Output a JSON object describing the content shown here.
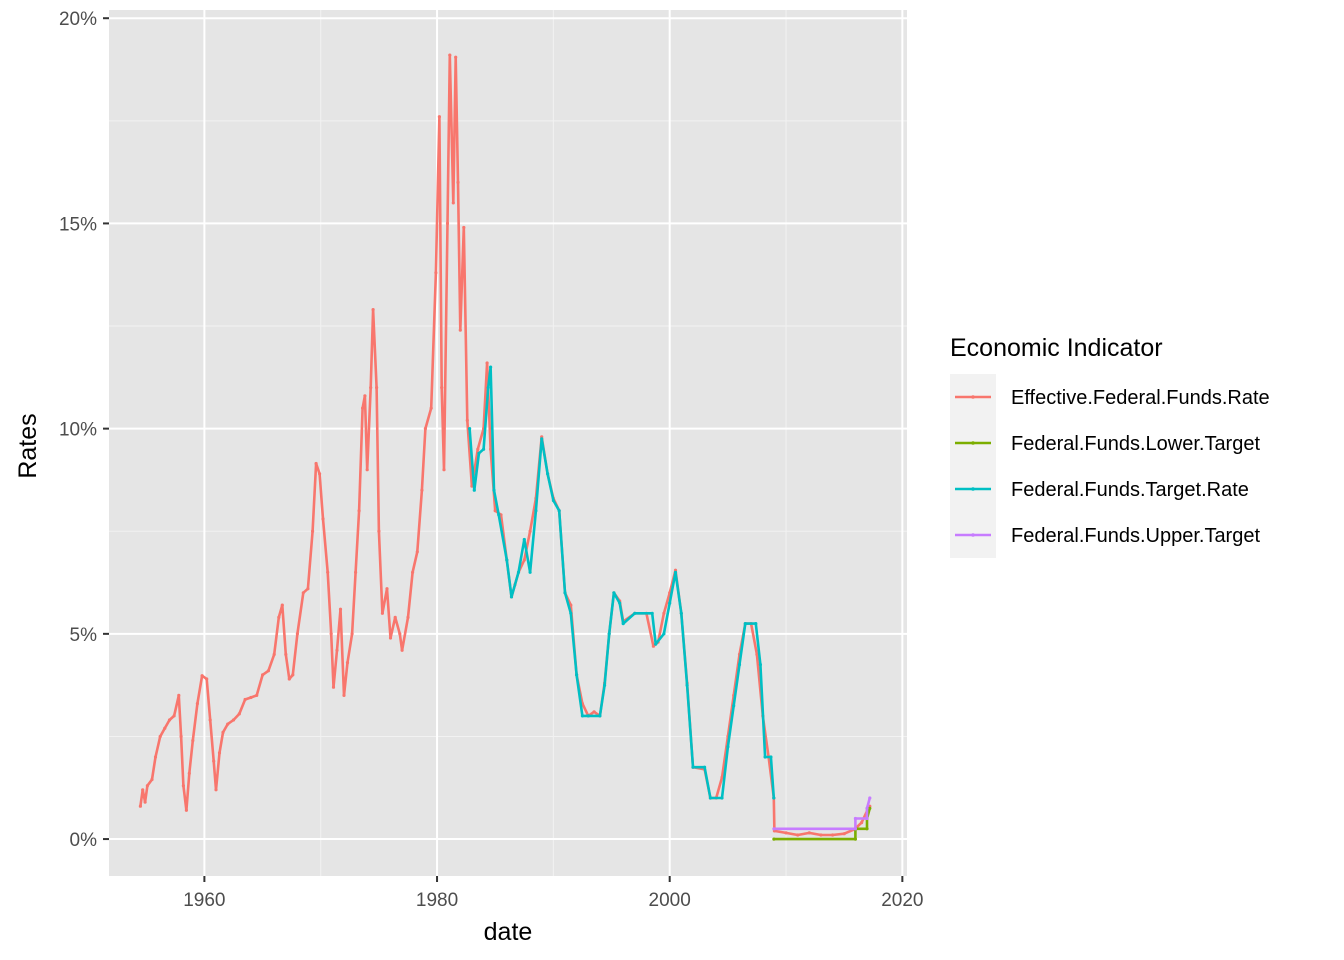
{
  "chart_data": {
    "type": "line",
    "xlabel": "date",
    "ylabel": "Rates",
    "xlim": [
      1951.8,
      2020.4
    ],
    "ylim": [
      -0.9,
      20.2
    ],
    "grid": true,
    "legend_position": "right",
    "legend_title": "Economic Indicator",
    "x_ticks": [
      {
        "value": 1960,
        "label": "1960"
      },
      {
        "value": 1980,
        "label": "1980"
      },
      {
        "value": 2000,
        "label": "2000"
      },
      {
        "value": 2020,
        "label": "2020"
      }
    ],
    "y_ticks": [
      {
        "value": 0,
        "label": "0%"
      },
      {
        "value": 5,
        "label": "5%"
      },
      {
        "value": 10,
        "label": "10%"
      },
      {
        "value": 15,
        "label": "15%"
      },
      {
        "value": 20,
        "label": "20%"
      }
    ],
    "series": [
      {
        "name": "Effective.Federal.Funds.Rate",
        "color": "#F8766D",
        "points": [
          [
            1954.5,
            0.8
          ],
          [
            1954.7,
            1.2
          ],
          [
            1954.9,
            0.9
          ],
          [
            1955.1,
            1.3
          ],
          [
            1955.5,
            1.45
          ],
          [
            1955.8,
            2.0
          ],
          [
            1956.2,
            2.5
          ],
          [
            1956.6,
            2.7
          ],
          [
            1957.0,
            2.9
          ],
          [
            1957.4,
            3.0
          ],
          [
            1957.8,
            3.5
          ],
          [
            1958.0,
            2.5
          ],
          [
            1958.2,
            1.3
          ],
          [
            1958.45,
            0.7
          ],
          [
            1958.7,
            1.6
          ],
          [
            1959.0,
            2.4
          ],
          [
            1959.4,
            3.3
          ],
          [
            1959.8,
            3.98
          ],
          [
            1960.2,
            3.9
          ],
          [
            1960.5,
            2.9
          ],
          [
            1960.8,
            1.9
          ],
          [
            1961.0,
            1.2
          ],
          [
            1961.3,
            2.1
          ],
          [
            1961.6,
            2.6
          ],
          [
            1962.0,
            2.8
          ],
          [
            1962.5,
            2.9
          ],
          [
            1963.0,
            3.05
          ],
          [
            1963.5,
            3.4
          ],
          [
            1964.0,
            3.45
          ],
          [
            1964.5,
            3.5
          ],
          [
            1965.0,
            4.0
          ],
          [
            1965.5,
            4.1
          ],
          [
            1966.0,
            4.5
          ],
          [
            1966.4,
            5.4
          ],
          [
            1966.7,
            5.7
          ],
          [
            1967.0,
            4.5
          ],
          [
            1967.3,
            3.9
          ],
          [
            1967.6,
            4.0
          ],
          [
            1968.0,
            5.0
          ],
          [
            1968.5,
            6.0
          ],
          [
            1968.9,
            6.1
          ],
          [
            1969.3,
            7.5
          ],
          [
            1969.6,
            9.15
          ],
          [
            1969.9,
            8.9
          ],
          [
            1970.2,
            7.8
          ],
          [
            1970.6,
            6.5
          ],
          [
            1970.9,
            5.0
          ],
          [
            1971.1,
            3.7
          ],
          [
            1971.4,
            4.6
          ],
          [
            1971.7,
            5.6
          ],
          [
            1972.0,
            3.5
          ],
          [
            1972.3,
            4.3
          ],
          [
            1972.7,
            5.0
          ],
          [
            1973.0,
            6.5
          ],
          [
            1973.3,
            8.0
          ],
          [
            1973.6,
            10.5
          ],
          [
            1973.8,
            10.8
          ],
          [
            1974.0,
            9.0
          ],
          [
            1974.3,
            11.0
          ],
          [
            1974.5,
            12.9
          ],
          [
            1974.8,
            11.0
          ],
          [
            1975.0,
            7.5
          ],
          [
            1975.3,
            5.5
          ],
          [
            1975.7,
            6.1
          ],
          [
            1976.0,
            4.9
          ],
          [
            1976.4,
            5.4
          ],
          [
            1976.8,
            5.0
          ],
          [
            1977.0,
            4.6
          ],
          [
            1977.5,
            5.4
          ],
          [
            1977.9,
            6.5
          ],
          [
            1978.3,
            7.0
          ],
          [
            1978.7,
            8.5
          ],
          [
            1979.0,
            10.0
          ],
          [
            1979.5,
            10.5
          ],
          [
            1979.9,
            13.8
          ],
          [
            1980.2,
            17.6
          ],
          [
            1980.4,
            11.0
          ],
          [
            1980.6,
            9.0
          ],
          [
            1980.9,
            15.0
          ],
          [
            1981.1,
            19.1
          ],
          [
            1981.4,
            15.5
          ],
          [
            1981.6,
            19.05
          ],
          [
            1981.8,
            16.0
          ],
          [
            1982.0,
            12.4
          ],
          [
            1982.3,
            14.9
          ],
          [
            1982.6,
            10.2
          ],
          [
            1983.0,
            8.6
          ],
          [
            1983.5,
            9.5
          ],
          [
            1984.0,
            10.0
          ],
          [
            1984.3,
            11.6
          ],
          [
            1984.6,
            9.5
          ],
          [
            1985.0,
            8.0
          ],
          [
            1985.5,
            7.9
          ],
          [
            1986.0,
            6.8
          ],
          [
            1986.4,
            5.9
          ],
          [
            1986.7,
            6.2
          ],
          [
            1987.0,
            6.5
          ],
          [
            1987.5,
            6.8
          ],
          [
            1988.0,
            7.5
          ],
          [
            1988.5,
            8.3
          ],
          [
            1989.0,
            9.8
          ],
          [
            1989.5,
            8.9
          ],
          [
            1990.0,
            8.3
          ],
          [
            1990.5,
            8.0
          ],
          [
            1991.0,
            6.0
          ],
          [
            1991.5,
            5.7
          ],
          [
            1992.0,
            4.0
          ],
          [
            1992.5,
            3.3
          ],
          [
            1993.0,
            3.0
          ],
          [
            1993.5,
            3.1
          ],
          [
            1994.0,
            3.0
          ],
          [
            1994.4,
            3.8
          ],
          [
            1994.8,
            5.0
          ],
          [
            1995.2,
            6.0
          ],
          [
            1995.7,
            5.8
          ],
          [
            1996.0,
            5.3
          ],
          [
            1997.0,
            5.5
          ],
          [
            1998.0,
            5.5
          ],
          [
            1998.6,
            4.7
          ],
          [
            1999.0,
            4.8
          ],
          [
            1999.5,
            5.5
          ],
          [
            2000.0,
            6.0
          ],
          [
            2000.5,
            6.55
          ],
          [
            2001.0,
            5.5
          ],
          [
            2001.5,
            3.8
          ],
          [
            2002.0,
            1.75
          ],
          [
            2003.0,
            1.7
          ],
          [
            2003.5,
            1.0
          ],
          [
            2004.0,
            1.0
          ],
          [
            2004.5,
            1.5
          ],
          [
            2005.0,
            2.5
          ],
          [
            2005.5,
            3.5
          ],
          [
            2006.0,
            4.5
          ],
          [
            2006.5,
            5.25
          ],
          [
            2007.0,
            5.25
          ],
          [
            2007.5,
            4.5
          ],
          [
            2008.0,
            3.0
          ],
          [
            2008.5,
            2.0
          ],
          [
            2008.95,
            1.0
          ],
          [
            2009.0,
            0.2
          ],
          [
            2010.0,
            0.15
          ],
          [
            2011.0,
            0.1
          ],
          [
            2012.0,
            0.15
          ],
          [
            2013.0,
            0.1
          ],
          [
            2014.0,
            0.1
          ],
          [
            2015.0,
            0.13
          ],
          [
            2015.9,
            0.24
          ],
          [
            2016.5,
            0.4
          ],
          [
            2017.0,
            0.7
          ],
          [
            2017.2,
            0.8
          ]
        ]
      },
      {
        "name": "Federal.Funds.Lower.Target",
        "color": "#7CAE00",
        "points": [
          [
            2008.96,
            0.0
          ],
          [
            2015.96,
            0.0
          ],
          [
            2015.96,
            0.25
          ],
          [
            2016.96,
            0.25
          ],
          [
            2016.96,
            0.5
          ],
          [
            2017.2,
            0.75
          ]
        ]
      },
      {
        "name": "Federal.Funds.Target.Rate",
        "color": "#00BFC4",
        "points": [
          [
            1982.8,
            10.0
          ],
          [
            1983.2,
            8.5
          ],
          [
            1983.6,
            9.4
          ],
          [
            1984.0,
            9.5
          ],
          [
            1984.4,
            11.0
          ],
          [
            1984.6,
            11.5
          ],
          [
            1984.9,
            8.5
          ],
          [
            1985.3,
            7.9
          ],
          [
            1986.0,
            6.8
          ],
          [
            1986.4,
            5.9
          ],
          [
            1987.0,
            6.5
          ],
          [
            1987.5,
            7.3
          ],
          [
            1988.0,
            6.5
          ],
          [
            1988.5,
            8.0
          ],
          [
            1989.0,
            9.75
          ],
          [
            1989.5,
            8.9
          ],
          [
            1990.0,
            8.25
          ],
          [
            1990.5,
            8.0
          ],
          [
            1991.0,
            6.0
          ],
          [
            1991.5,
            5.5
          ],
          [
            1992.0,
            4.0
          ],
          [
            1992.5,
            3.0
          ],
          [
            1993.0,
            3.0
          ],
          [
            1994.0,
            3.0
          ],
          [
            1994.4,
            3.75
          ],
          [
            1994.8,
            5.0
          ],
          [
            1995.2,
            6.0
          ],
          [
            1995.7,
            5.75
          ],
          [
            1996.0,
            5.25
          ],
          [
            1997.0,
            5.5
          ],
          [
            1998.5,
            5.5
          ],
          [
            1998.8,
            4.75
          ],
          [
            1999.5,
            5.0
          ],
          [
            2000.0,
            5.75
          ],
          [
            2000.5,
            6.5
          ],
          [
            2001.0,
            5.5
          ],
          [
            2001.5,
            3.75
          ],
          [
            2002.0,
            1.75
          ],
          [
            2003.0,
            1.75
          ],
          [
            2003.5,
            1.0
          ],
          [
            2004.5,
            1.0
          ],
          [
            2005.0,
            2.25
          ],
          [
            2005.5,
            3.25
          ],
          [
            2006.0,
            4.25
          ],
          [
            2006.5,
            5.25
          ],
          [
            2007.4,
            5.25
          ],
          [
            2007.8,
            4.25
          ],
          [
            2008.2,
            2.0
          ],
          [
            2008.7,
            2.0
          ],
          [
            2008.95,
            1.0
          ]
        ]
      },
      {
        "name": "Federal.Funds.Upper.Target",
        "color": "#C77CFF",
        "points": [
          [
            2008.96,
            0.25
          ],
          [
            2015.96,
            0.25
          ],
          [
            2015.96,
            0.5
          ],
          [
            2016.96,
            0.5
          ],
          [
            2016.96,
            0.75
          ],
          [
            2017.2,
            1.0
          ]
        ]
      }
    ]
  }
}
